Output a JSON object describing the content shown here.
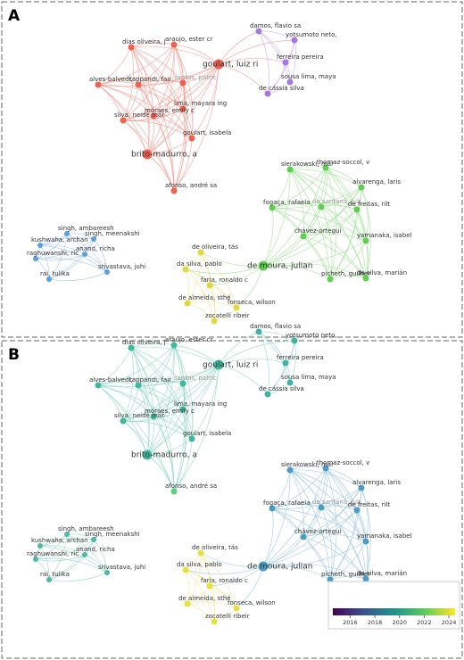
{
  "panels": [
    {
      "label": "A",
      "nodes": [
        "dias oliveira, j",
        "araujo, ester cr",
        "goulart, luiz ri",
        "alves-balvedi,",
        "tappandi, fair",
        "santos, patric",
        "lima, mayara ing",
        "moraes, emily c",
        "silva, neide mar",
        "goulart, isabela",
        "brito-madurro, a",
        "afonso, andré sa",
        "damos, flavio sa",
        "yotsumoto neto,",
        "ferreira pereira",
        "sousa lima, maya",
        "de cássia silva",
        "singh, ambareesh",
        "kushwaha, archan",
        "singh, meenakshi",
        "anand, richa",
        "raghuwanshi, ric",
        "srivastava, juhi",
        "rai, tulika",
        "sierakowski, mar",
        "thomaz-soccol, v",
        "alvarenga, laris",
        "fogaça, rafaela",
        "de santana, juli",
        "de freitas, rilt",
        "chávez-ortegui",
        "yamanaka, isabel",
        "de moura, julian",
        "picheth, guilher",
        "da silva, marián",
        "de oliveira, tás",
        "da silva, pablo",
        "faria, ronaldo c",
        "de almeida, sthé",
        "fonseca, wilson",
        "zocatelli ribeir"
      ]
    },
    {
      "label": "B",
      "nodes": [
        "dias oliveira, j",
        "araujo, ester cr",
        "goulart, luiz ri",
        "alves-balvedi,",
        "tappandi, fair",
        "santos, patric",
        "lima, mayara ing",
        "moraes, emily c",
        "silva, neide mar",
        "goulart, isabela",
        "brito-madurro, a",
        "afonso, andré sa",
        "damos, flavio sa",
        "yotsumoto neto,",
        "ferreira pereira",
        "sousa lima, maya",
        "de cássia silva",
        "singh, ambareesh",
        "kushwaha, archan",
        "singh, meenakshi",
        "anand, richa",
        "raghuwanshi, ric",
        "srivastava, juhi",
        "rai, tulika",
        "sierakowski, mar",
        "thomaz-soccol, v",
        "alvarenga, laris",
        "fogaça, rafaela",
        "de santana, juli",
        "de freitas, rilt",
        "chávez-ortegui",
        "yamanaka, isabel",
        "de moura, julian",
        "picheth, guilher",
        "da silva, marián",
        "de oliveira, tás",
        "da silva, pablo",
        "faria, ronaldo c",
        "de almeida, sthé",
        "fonseca, wilson",
        "zocatelli ribeir"
      ],
      "colorbar": {
        "ticks": [
          2016,
          2018,
          2020,
          2022,
          2024
        ],
        "lim": [
          2014.6,
          2024.5
        ]
      }
    }
  ]
}
